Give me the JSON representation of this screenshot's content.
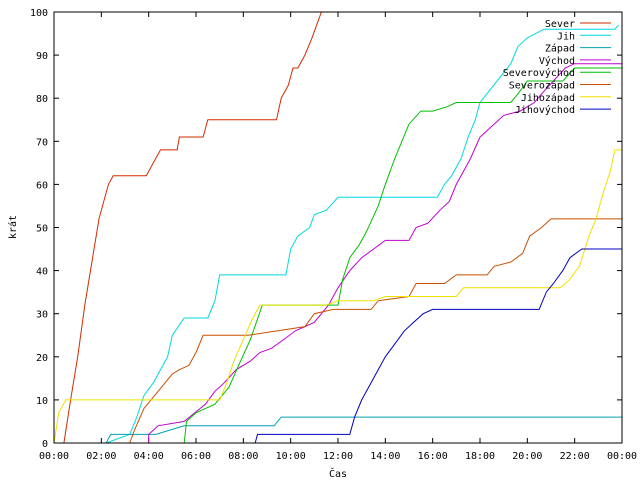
{
  "chart_data": {
    "type": "line",
    "xlabel": "Čas",
    "ylabel": "krát",
    "xlim": [
      0,
      24
    ],
    "ylim": [
      0,
      100
    ],
    "x_tick_labels": [
      "00:00",
      "02:00",
      "04:00",
      "06:00",
      "08:00",
      "10:00",
      "12:00",
      "14:00",
      "16:00",
      "18:00",
      "20:00",
      "22:00",
      "00:00"
    ],
    "y_tick_labels": [
      "0",
      "10",
      "20",
      "30",
      "40",
      "50",
      "60",
      "70",
      "80",
      "90",
      "100"
    ],
    "grid": false,
    "legend_position": "top-right",
    "series": [
      {
        "name": "Sever",
        "color": "#d22b00",
        "points": [
          [
            0.42,
            0
          ],
          [
            0.7,
            10
          ],
          [
            1.0,
            20
          ],
          [
            1.3,
            32
          ],
          [
            1.6,
            42
          ],
          [
            1.9,
            52
          ],
          [
            2.3,
            60
          ],
          [
            2.5,
            62
          ],
          [
            3.9,
            62
          ],
          [
            4.2,
            65
          ],
          [
            4.5,
            68
          ],
          [
            5.2,
            68
          ],
          [
            5.3,
            71
          ],
          [
            6.3,
            71
          ],
          [
            6.5,
            75
          ],
          [
            9.4,
            75
          ],
          [
            9.6,
            80
          ],
          [
            9.9,
            83
          ],
          [
            10.1,
            87
          ],
          [
            10.3,
            87
          ],
          [
            10.6,
            90
          ],
          [
            10.9,
            94
          ],
          [
            11.1,
            97
          ],
          [
            11.3,
            100
          ],
          [
            11.4,
            100
          ]
        ]
      },
      {
        "name": "Jih",
        "color": "#00d8e0",
        "points": [
          [
            2.2,
            0
          ],
          [
            3.2,
            2
          ],
          [
            3.5,
            6
          ],
          [
            3.8,
            11
          ],
          [
            4.2,
            14
          ],
          [
            4.5,
            17
          ],
          [
            4.8,
            20
          ],
          [
            5.0,
            25
          ],
          [
            5.5,
            29
          ],
          [
            6.5,
            29
          ],
          [
            6.8,
            33
          ],
          [
            7.0,
            39
          ],
          [
            9.8,
            39
          ],
          [
            10.0,
            45
          ],
          [
            10.3,
            48
          ],
          [
            10.8,
            50
          ],
          [
            11.0,
            53
          ],
          [
            11.5,
            54
          ],
          [
            12.0,
            57
          ],
          [
            16.2,
            57
          ],
          [
            16.5,
            60
          ],
          [
            16.8,
            62
          ],
          [
            17.2,
            66
          ],
          [
            17.5,
            71
          ],
          [
            17.8,
            75
          ],
          [
            18.0,
            79
          ],
          [
            19.3,
            88
          ],
          [
            19.6,
            92
          ],
          [
            20.0,
            94
          ],
          [
            20.7,
            96
          ],
          [
            23.7,
            96
          ],
          [
            23.85,
            97
          ]
        ]
      },
      {
        "name": "Západ",
        "color": "#00a0b0",
        "points": [
          [
            2.2,
            0
          ],
          [
            2.3,
            1
          ],
          [
            2.4,
            2
          ],
          [
            4.3,
            2
          ],
          [
            5.5,
            4
          ],
          [
            9.3,
            4
          ],
          [
            9.6,
            6
          ],
          [
            12.8,
            6
          ],
          [
            24.0,
            6
          ]
        ]
      },
      {
        "name": "Východ",
        "color": "#c000d0",
        "points": [
          [
            4.0,
            0
          ],
          [
            4.0,
            2
          ],
          [
            4.4,
            4
          ],
          [
            5.5,
            5
          ],
          [
            6.4,
            9
          ],
          [
            6.8,
            12
          ],
          [
            7.2,
            14
          ],
          [
            7.7,
            17
          ],
          [
            8.3,
            19
          ],
          [
            8.7,
            21
          ],
          [
            9.2,
            22
          ],
          [
            9.7,
            24
          ],
          [
            10.2,
            26
          ],
          [
            11.0,
            28
          ],
          [
            11.6,
            32
          ],
          [
            12.0,
            36
          ],
          [
            12.5,
            40
          ],
          [
            13.0,
            43
          ],
          [
            14.0,
            47
          ],
          [
            15.0,
            47
          ],
          [
            15.3,
            50
          ],
          [
            15.8,
            51
          ],
          [
            16.3,
            54
          ],
          [
            16.7,
            56
          ],
          [
            17.0,
            60
          ],
          [
            17.3,
            63
          ],
          [
            17.6,
            66
          ],
          [
            18.0,
            71
          ],
          [
            18.6,
            74
          ],
          [
            19.0,
            76
          ],
          [
            19.7,
            77
          ],
          [
            20.3,
            79
          ],
          [
            20.6,
            81
          ],
          [
            21.1,
            84
          ],
          [
            21.6,
            87
          ],
          [
            22.0,
            88
          ],
          [
            24.0,
            88
          ]
        ]
      },
      {
        "name": "Severovýchod",
        "color": "#00c000",
        "points": [
          [
            5.5,
            0
          ],
          [
            5.6,
            5
          ],
          [
            6.0,
            7
          ],
          [
            6.8,
            9
          ],
          [
            7.4,
            13
          ],
          [
            7.8,
            18
          ],
          [
            8.3,
            24
          ],
          [
            8.8,
            32
          ],
          [
            12.0,
            32
          ],
          [
            12.2,
            38
          ],
          [
            12.5,
            43
          ],
          [
            12.9,
            46
          ],
          [
            13.2,
            49
          ],
          [
            13.7,
            55
          ],
          [
            14.0,
            60
          ],
          [
            14.4,
            66
          ],
          [
            14.7,
            70
          ],
          [
            15.0,
            74
          ],
          [
            15.5,
            77
          ],
          [
            16.0,
            77
          ],
          [
            16.6,
            78
          ],
          [
            17.0,
            79
          ],
          [
            19.3,
            79
          ],
          [
            19.6,
            81
          ],
          [
            20.0,
            84
          ],
          [
            21.5,
            84
          ],
          [
            22.0,
            87
          ],
          [
            24.0,
            87
          ]
        ]
      },
      {
        "name": "Severozápad",
        "color": "#c85000",
        "points": [
          [
            3.2,
            0
          ],
          [
            3.4,
            3
          ],
          [
            3.8,
            8
          ],
          [
            4.1,
            10
          ],
          [
            4.4,
            12
          ],
          [
            5.0,
            16
          ],
          [
            5.3,
            17
          ],
          [
            5.7,
            18
          ],
          [
            6.0,
            21
          ],
          [
            6.3,
            25
          ],
          [
            8.0,
            25
          ],
          [
            8.2,
            25
          ],
          [
            10.6,
            27
          ],
          [
            11.0,
            30
          ],
          [
            11.8,
            31
          ],
          [
            13.4,
            31
          ],
          [
            13.7,
            33
          ],
          [
            15.0,
            34
          ],
          [
            15.3,
            37
          ],
          [
            16.5,
            37
          ],
          [
            17.0,
            39
          ],
          [
            18.3,
            39
          ],
          [
            18.6,
            41
          ],
          [
            19.3,
            42
          ],
          [
            19.8,
            44
          ],
          [
            20.1,
            48
          ],
          [
            20.6,
            50
          ],
          [
            21.0,
            52
          ],
          [
            24.0,
            52
          ]
        ]
      },
      {
        "name": "Jihozápad",
        "color": "#f0e000",
        "points": [
          [
            0.0,
            0
          ],
          [
            0.2,
            7
          ],
          [
            0.5,
            10
          ],
          [
            7.0,
            10
          ],
          [
            7.3,
            14
          ],
          [
            7.6,
            19
          ],
          [
            8.0,
            24
          ],
          [
            8.4,
            29
          ],
          [
            8.7,
            32
          ],
          [
            11.5,
            32
          ],
          [
            12.0,
            33
          ],
          [
            13.5,
            33
          ],
          [
            14.0,
            34
          ],
          [
            17.0,
            34
          ],
          [
            17.3,
            36
          ],
          [
            18.0,
            36
          ],
          [
            21.4,
            36
          ],
          [
            21.8,
            38
          ],
          [
            22.2,
            41
          ],
          [
            22.6,
            48
          ],
          [
            22.9,
            52
          ],
          [
            23.2,
            58
          ],
          [
            23.5,
            63
          ],
          [
            23.7,
            68
          ],
          [
            24.0,
            68
          ]
        ]
      },
      {
        "name": "Jihovýchod",
        "color": "#0000c0",
        "points": [
          [
            8.5,
            0
          ],
          [
            8.6,
            2
          ],
          [
            12.5,
            2
          ],
          [
            12.7,
            6
          ],
          [
            13.0,
            10
          ],
          [
            13.4,
            14
          ],
          [
            13.7,
            17
          ],
          [
            14.0,
            20
          ],
          [
            14.4,
            23
          ],
          [
            14.8,
            26
          ],
          [
            15.2,
            28
          ],
          [
            15.6,
            30
          ],
          [
            16.0,
            31
          ],
          [
            17.0,
            31
          ],
          [
            20.5,
            31
          ],
          [
            20.8,
            35
          ],
          [
            21.1,
            37
          ],
          [
            21.5,
            40
          ],
          [
            21.8,
            43
          ],
          [
            22.3,
            45
          ],
          [
            24.0,
            45
          ]
        ]
      }
    ]
  }
}
